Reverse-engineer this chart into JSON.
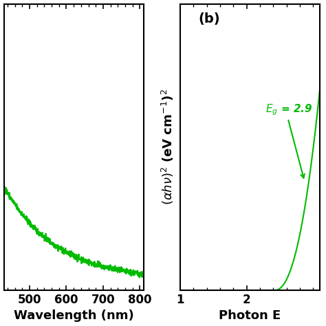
{
  "left_plot": {
    "xlim": [
      430,
      810
    ],
    "x_ticks": [
      500,
      600,
      700,
      800
    ],
    "x_tick_labels": [
      "500",
      "600",
      "700",
      "800"
    ],
    "xlabel": "Wavelength (nm)",
    "line_color": "#00BB00",
    "ylim": [
      0.0,
      0.55
    ]
  },
  "right_plot": {
    "xlim": [
      1.0,
      3.1
    ],
    "x_ticks": [
      1,
      2
    ],
    "x_tick_labels": [
      "1",
      "2"
    ],
    "xlabel": "Photon E",
    "ylabel": "($\\alpha h\\nu$)$^2$ (eV cm$^{-1}$)$^2$",
    "line_color": "#00BB00",
    "panel_label": "(b)",
    "annotation_text": "$E_g$ = 2.9",
    "annotation_color": "#00BB00",
    "ylim": [
      0.0,
      1.0
    ]
  },
  "background_color": "#ffffff",
  "label_fontsize": 13,
  "tick_fontsize": 12,
  "panel_label_fontsize": 14,
  "line_width": 1.5
}
